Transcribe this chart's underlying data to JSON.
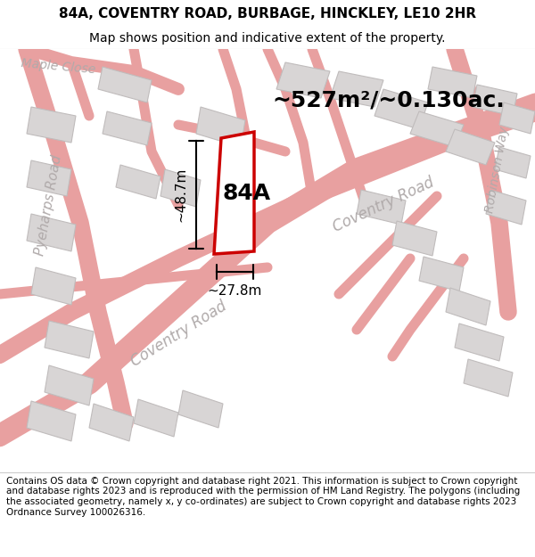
{
  "title_line1": "84A, COVENTRY ROAD, BURBAGE, HINCKLEY, LE10 2HR",
  "title_line2": "Map shows position and indicative extent of the property.",
  "area_text": "~527m²/~0.130ac.",
  "label_84A": "84A",
  "dim_height": "~48.7m",
  "dim_width": "~27.8m",
  "footer_text": "Contains OS data © Crown copyright and database right 2021. This information is subject to Crown copyright and database rights 2023 and is reproduced with the permission of HM Land Registry. The polygons (including the associated geometry, namely x, y co-ordinates) are subject to Crown copyright and database rights 2023 Ordnance Survey 100026316.",
  "bg_color": "#f0eeee",
  "map_bg": "#ede9e9",
  "plot_polygon_color": "#cc0000",
  "plot_polygon_fill": "#ffffff",
  "road_color": "#e8a0a0",
  "building_color": "#d8d5d5",
  "building_edge": "#c0bcbc",
  "title_fontsize": 11,
  "subtitle_fontsize": 10,
  "footer_fontsize": 7.5,
  "area_fontsize": 18,
  "label_fontsize": 18,
  "dim_fontsize": 11,
  "road_label_color": "#b0aaaa",
  "road_label_fontsize": 12
}
